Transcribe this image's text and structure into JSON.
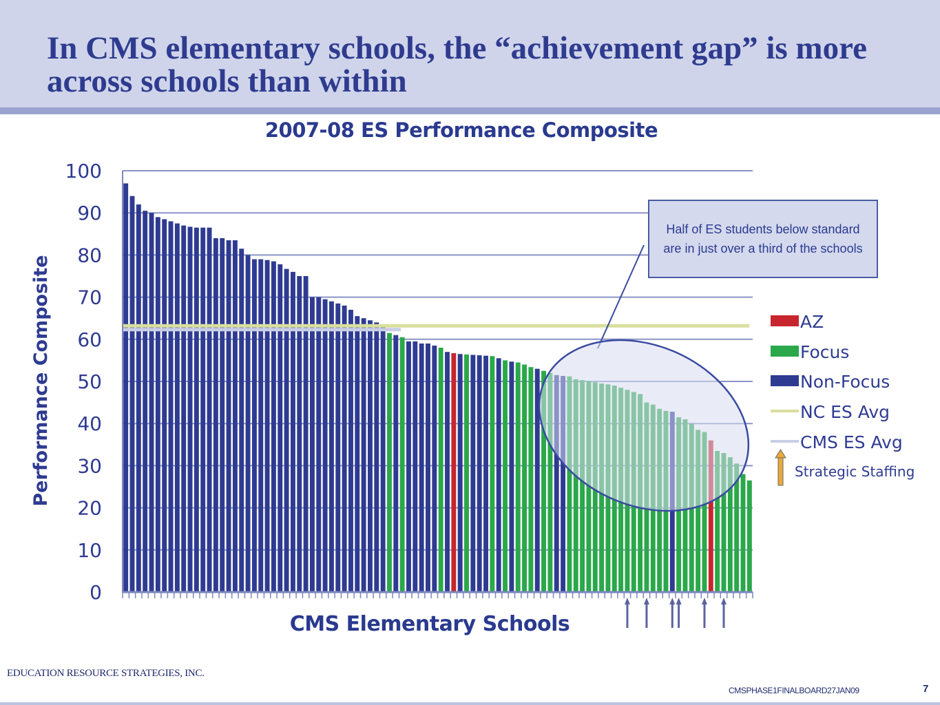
{
  "slide": {
    "title": "In CMS elementary schools, the “achievement gap” is more across schools than within",
    "footer_left": "EDUCATION RESOURCE STRATEGIES, INC.",
    "footer_right": "CMSPHASE1FINALBOARD27JAN09",
    "page_number": "7"
  },
  "callout": {
    "text": "Half of ES students below standard are in just over a third of the schools"
  },
  "colors": {
    "AZ": "#c8262e",
    "Focus": "#2aa84a",
    "Non-Focus": "#2e3b91",
    "NC ES Avg": "#d9df9e",
    "CMS ES Avg": "#c8cee6",
    "Strategic Staffing": "#e8a83a"
  },
  "chart_data": {
    "type": "bar",
    "title": "2007-08 ES Performance Composite",
    "xlabel": "CMS Elementary Schools",
    "ylabel": "Performance Composite",
    "ylim": [
      0,
      100
    ],
    "yticks": [
      0,
      10,
      20,
      30,
      40,
      50,
      60,
      70,
      80,
      90,
      100
    ],
    "grid": true,
    "legend": [
      "AZ",
      "Focus",
      "Non-Focus",
      "NC ES Avg",
      "CMS ES Avg",
      "Strategic Staffing"
    ],
    "legend_position": "right",
    "reference_lines": [
      {
        "name": "NC ES Avg",
        "value": 63.2
      },
      {
        "name": "CMS ES Avg",
        "value": 62.3
      }
    ],
    "values": [
      97,
      94,
      92,
      90.5,
      90,
      89,
      88.5,
      88,
      87.5,
      87,
      86.7,
      86.5,
      86.5,
      86.5,
      84,
      84,
      83.5,
      83.5,
      81.5,
      80,
      79,
      79,
      78.8,
      78.5,
      77.8,
      76.7,
      76,
      75,
      75,
      70,
      70,
      69.5,
      69,
      68.5,
      68,
      67,
      65.5,
      65,
      64.5,
      64,
      63.5,
      61.5,
      61,
      60.5,
      59.5,
      59.5,
      59,
      59,
      58.5,
      58,
      57,
      56.7,
      56.5,
      56.4,
      56.3,
      56.2,
      56.1,
      56,
      55.5,
      55,
      54.7,
      54.5,
      54,
      53.4,
      53,
      52.5,
      52,
      51.5,
      51.3,
      51.2,
      50.5,
      50.3,
      50.1,
      49.8,
      49.5,
      49.3,
      49,
      48.5,
      48,
      47.5,
      47,
      45,
      44.5,
      43.5,
      43,
      42.8,
      41.5,
      41,
      40,
      38.5,
      38,
      36,
      33.5,
      33,
      32,
      30.5,
      28,
      26.5
    ],
    "groups": [
      "Non-Focus",
      "Non-Focus",
      "Non-Focus",
      "Non-Focus",
      "Non-Focus",
      "Non-Focus",
      "Non-Focus",
      "Non-Focus",
      "Non-Focus",
      "Non-Focus",
      "Non-Focus",
      "Non-Focus",
      "Non-Focus",
      "Non-Focus",
      "Non-Focus",
      "Non-Focus",
      "Non-Focus",
      "Non-Focus",
      "Non-Focus",
      "Non-Focus",
      "Non-Focus",
      "Non-Focus",
      "Non-Focus",
      "Non-Focus",
      "Non-Focus",
      "Non-Focus",
      "Non-Focus",
      "Non-Focus",
      "Non-Focus",
      "Non-Focus",
      "Non-Focus",
      "Non-Focus",
      "Non-Focus",
      "Non-Focus",
      "Non-Focus",
      "Non-Focus",
      "Non-Focus",
      "Non-Focus",
      "Non-Focus",
      "Non-Focus",
      "Non-Focus",
      "Focus",
      "Non-Focus",
      "Focus",
      "Non-Focus",
      "Non-Focus",
      "Non-Focus",
      "Non-Focus",
      "Non-Focus",
      "Focus",
      "Non-Focus",
      "AZ",
      "Non-Focus",
      "Focus",
      "Non-Focus",
      "Non-Focus",
      "Non-Focus",
      "Focus",
      "Non-Focus",
      "Focus",
      "Non-Focus",
      "Focus",
      "Focus",
      "Focus",
      "Non-Focus",
      "Focus",
      "Focus",
      "Non-Focus",
      "Non-Focus",
      "Focus",
      "Focus",
      "Focus",
      "Focus",
      "Focus",
      "Focus",
      "Focus",
      "Focus",
      "Focus",
      "Focus",
      "Focus",
      "Focus",
      "Focus",
      "Focus",
      "Focus",
      "Focus",
      "Non-Focus",
      "Focus",
      "Focus",
      "Focus",
      "Focus",
      "Focus",
      "AZ",
      "Focus",
      "Focus",
      "Focus",
      "Focus",
      "Focus",
      "Focus"
    ],
    "strategic_staffing_schools": [
      78,
      81,
      85,
      86,
      90,
      93
    ]
  }
}
